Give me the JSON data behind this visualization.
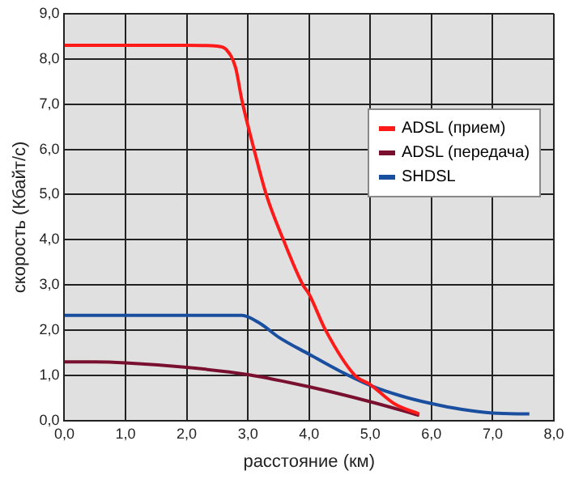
{
  "chart_data": {
    "type": "line",
    "xlabel": "расстояние (км)",
    "ylabel": "скорость (Кбайт/с)",
    "xlim": [
      0,
      8
    ],
    "ylim": [
      0,
      9
    ],
    "xticks": [
      {
        "value": 0,
        "label": "0,0"
      },
      {
        "value": 1,
        "label": "1,0"
      },
      {
        "value": 2,
        "label": "2,0"
      },
      {
        "value": 3,
        "label": "3,0"
      },
      {
        "value": 4,
        "label": "4,0"
      },
      {
        "value": 5,
        "label": "5,0"
      },
      {
        "value": 6,
        "label": "6,0"
      },
      {
        "value": 7,
        "label": "7,0"
      },
      {
        "value": 8,
        "label": "8,0"
      }
    ],
    "yticks": [
      {
        "value": 0,
        "label": "0,0"
      },
      {
        "value": 1,
        "label": "1,0"
      },
      {
        "value": 2,
        "label": "2,0"
      },
      {
        "value": 3,
        "label": "3,0"
      },
      {
        "value": 4,
        "label": "4,0"
      },
      {
        "value": 5,
        "label": "5,0"
      },
      {
        "value": 6,
        "label": "6,0"
      },
      {
        "value": 7,
        "label": "7,0"
      },
      {
        "value": 8,
        "label": "8,0"
      },
      {
        "value": 9,
        "label": "9,0"
      }
    ],
    "grid": true,
    "legend": "right",
    "marker": "none",
    "line_style": "solid",
    "series": [
      {
        "name": "ADSL (прием)",
        "color": "#ff1a1a",
        "x": [
          0,
          1,
          2,
          2.5,
          2.65,
          2.8,
          2.9,
          3.1,
          3.3,
          3.58,
          3.9,
          4.0,
          4.27,
          4.75,
          5.0,
          5.4,
          5.8
        ],
        "values": [
          8.3,
          8.3,
          8.3,
          8.28,
          8.2,
          7.8,
          7.1,
          6.0,
          5.0,
          4.0,
          3.0,
          2.8,
          2.0,
          1.0,
          0.8,
          0.37,
          0.15
        ]
      },
      {
        "name": "ADSL (передача)",
        "color": "#7a1030",
        "x": [
          0,
          0.5,
          1,
          2,
          3,
          4,
          5,
          5.8
        ],
        "values": [
          1.3,
          1.3,
          1.28,
          1.18,
          1.02,
          0.75,
          0.42,
          0.12
        ]
      },
      {
        "name": "SHDSL",
        "color": "#1a4fa0",
        "x": [
          0,
          1,
          2,
          2.9,
          3.2,
          3.5,
          4,
          4.5,
          5,
          5.5,
          6,
          6.5,
          7,
          7.6
        ],
        "values": [
          2.33,
          2.33,
          2.33,
          2.33,
          2.15,
          1.85,
          1.47,
          1.1,
          0.78,
          0.55,
          0.38,
          0.25,
          0.17,
          0.15
        ]
      }
    ]
  }
}
